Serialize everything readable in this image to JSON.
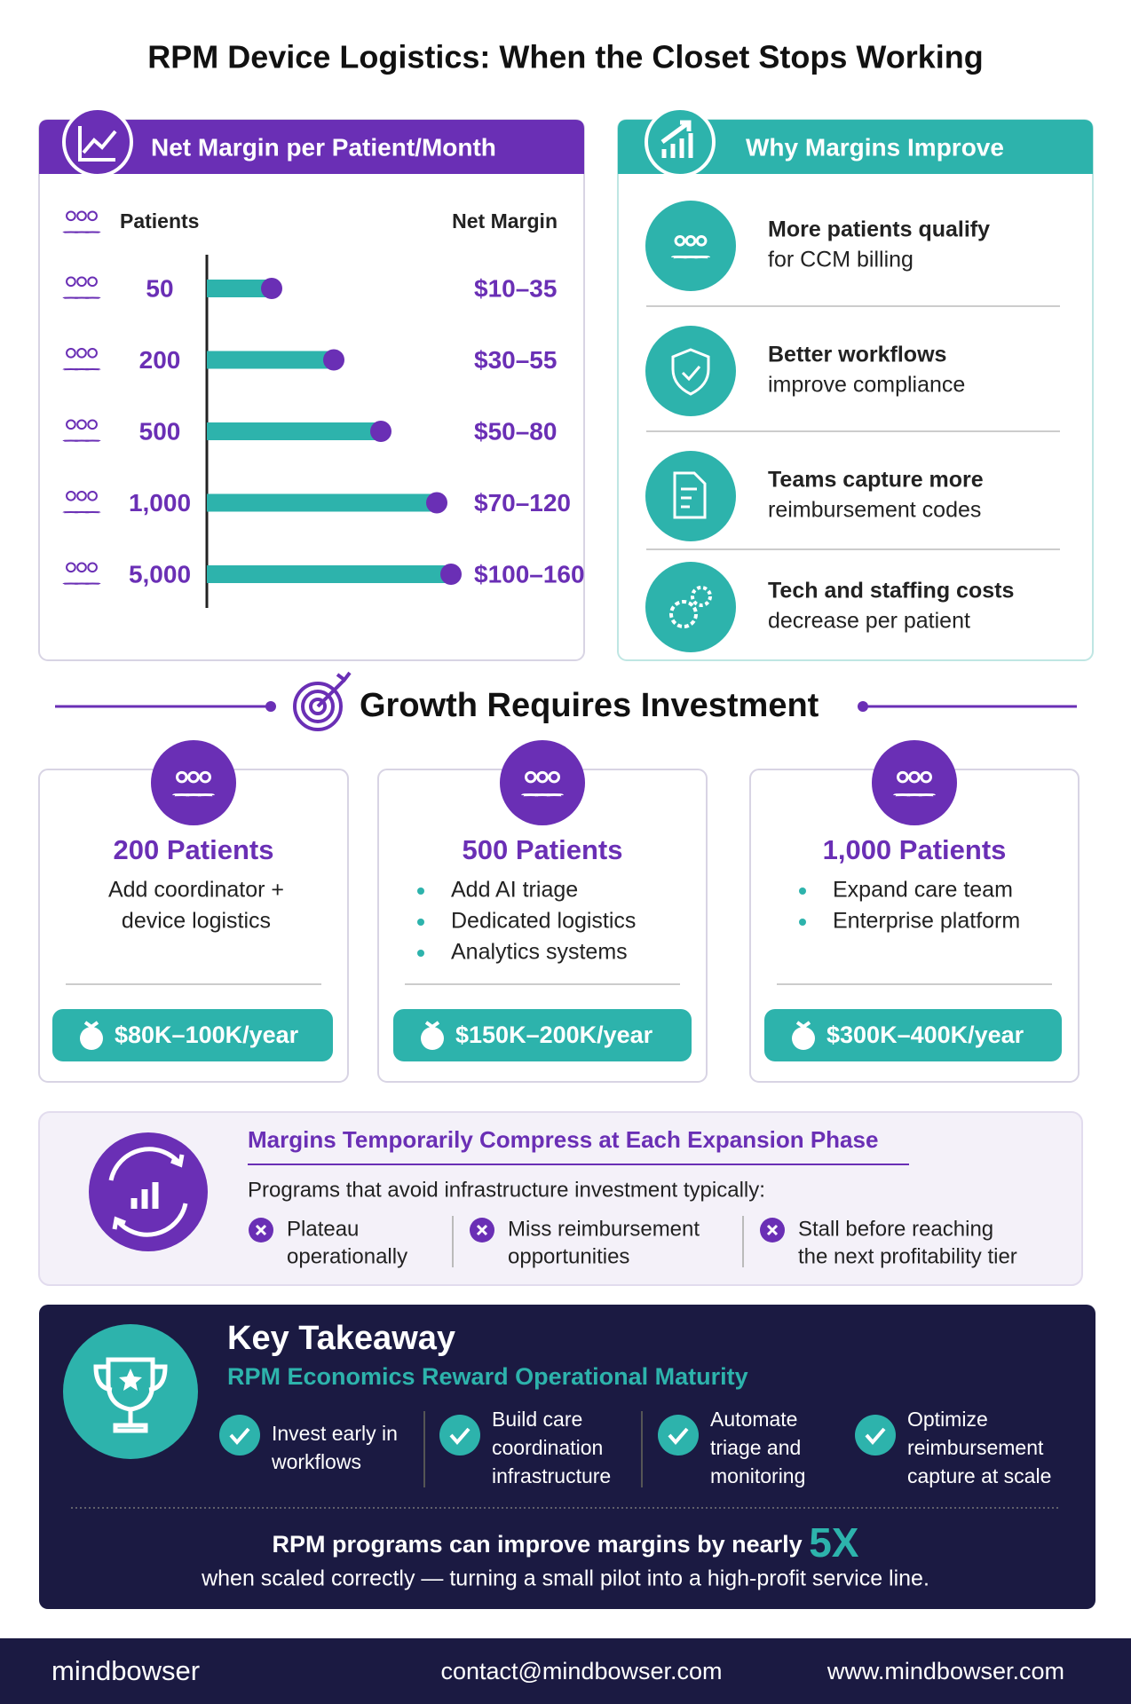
{
  "title": "RPM Device Logistics: When the Closet Stops Working",
  "margin_panel": {
    "title": "Net Margin per Patient/Month",
    "column_headers": [
      "Patients",
      "Net Margin"
    ],
    "rows": [
      {
        "patients": "50",
        "margin": "$10–35"
      },
      {
        "patients": "200",
        "margin": "$30–55"
      },
      {
        "patients": "500",
        "margin": "$50–80"
      },
      {
        "patients": "1,000",
        "margin": "$70–120"
      },
      {
        "patients": "5,000",
        "margin": "$100–160"
      }
    ]
  },
  "why_panel": {
    "title": "Why Margins Improve",
    "items": [
      {
        "bold": "More patients qualify",
        "text": "for CCM billing"
      },
      {
        "bold": "Better workflows",
        "text": "improve compliance"
      },
      {
        "bold": "Teams capture more",
        "text": "reimbursement codes"
      },
      {
        "bold": "Tech and staffing costs",
        "text": "decrease per patient"
      }
    ]
  },
  "investment": {
    "title": "Growth Requires Investment",
    "cards": [
      {
        "title": "200 Patients",
        "lines": [
          "Add coordinator +",
          "device logistics"
        ],
        "cost": "$80K–100K/year"
      },
      {
        "title": "500 Patients",
        "bullets": [
          "Add AI triage",
          "Dedicated logistics",
          "Analytics systems"
        ],
        "cost": "$150K–200K/year"
      },
      {
        "title": "1,000 Patients",
        "bullets": [
          "Expand care team",
          "Enterprise platform"
        ],
        "cost": "$300K–400K/year"
      }
    ]
  },
  "compress": {
    "title": "Margins Temporarily Compress at Each Expansion Phase",
    "intro": "Programs that avoid infrastructure investment typically:",
    "items": [
      [
        "Plateau",
        "operationally"
      ],
      [
        "Miss reimbursement",
        "opportunities"
      ],
      [
        "Stall before reaching",
        "the next profitability tier"
      ]
    ]
  },
  "takeaway": {
    "title": "Key Takeaway",
    "subtitle": "RPM Economics Reward Operational Maturity",
    "items": [
      [
        "Invest early in",
        "workflows"
      ],
      [
        "Build care",
        "coordination",
        "infrastructure"
      ],
      [
        "Automate",
        "triage and",
        "monitoring"
      ],
      [
        "Optimize",
        "reimbursement",
        "capture at scale"
      ]
    ],
    "closing_lead": "RPM programs can improve margins by nearly",
    "closing_highlight": "5X",
    "closing_tail": "when scaled correctly — turning a small pilot into a high-profit service line."
  },
  "footer": {
    "brand": "mindbowser",
    "email": "contact@mindbowser.com",
    "website": "www.mindbowser.com"
  }
}
